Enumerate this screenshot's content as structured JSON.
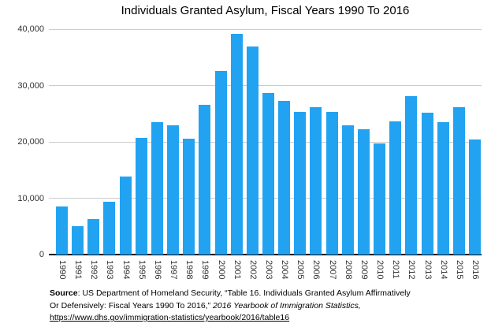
{
  "title": "Individuals Granted Asylum, Fiscal Years 1990 To 2016",
  "chart_data": {
    "type": "bar",
    "title": "Individuals Granted Asylum, Fiscal Years 1990 To 2016",
    "categories": [
      "1990",
      "1991",
      "1992",
      "1993",
      "1994",
      "1995",
      "1996",
      "1997",
      "1998",
      "1999",
      "2000",
      "2001",
      "2002",
      "2003",
      "2004",
      "2005",
      "2006",
      "2007",
      "2008",
      "2009",
      "2010",
      "2011",
      "2012",
      "2013",
      "2014",
      "2015",
      "2016"
    ],
    "values": [
      8472,
      5035,
      6307,
      9414,
      13798,
      20716,
      23533,
      22939,
      20505,
      26552,
      32537,
      39146,
      36924,
      28714,
      27321,
      25257,
      26113,
      25270,
      22930,
      22219,
      19771,
      23669,
      28081,
      25199,
      23533,
      26124,
      20455
    ],
    "xlabel": "",
    "ylabel": "",
    "ylim": [
      0,
      40000
    ],
    "yticks": [
      0,
      10000,
      20000,
      30000,
      40000
    ],
    "ytick_labels": [
      "0",
      "10,000",
      "20,000",
      "30,000",
      "40,000"
    ],
    "grid": true,
    "legend": "none",
    "bar_color": "#22a3f2"
  },
  "colors": {
    "bar": "#22a3f2",
    "gridline": "#cccccc",
    "axis": "#000000",
    "tick_text": "#333333"
  },
  "source": {
    "label": "Source",
    "line1_rest": ": US Department of Homeland Security, “Table 16. Individuals Granted Asylum Affirmatively",
    "line2_text": "Or Defensively: Fiscal Years 1990 To 2016,” ",
    "line2_italic": "2016 Yearbook of Immigration Statistics,",
    "link": "https://www.dhs.gov/immigration-statistics/yearbook/2016/table16"
  }
}
